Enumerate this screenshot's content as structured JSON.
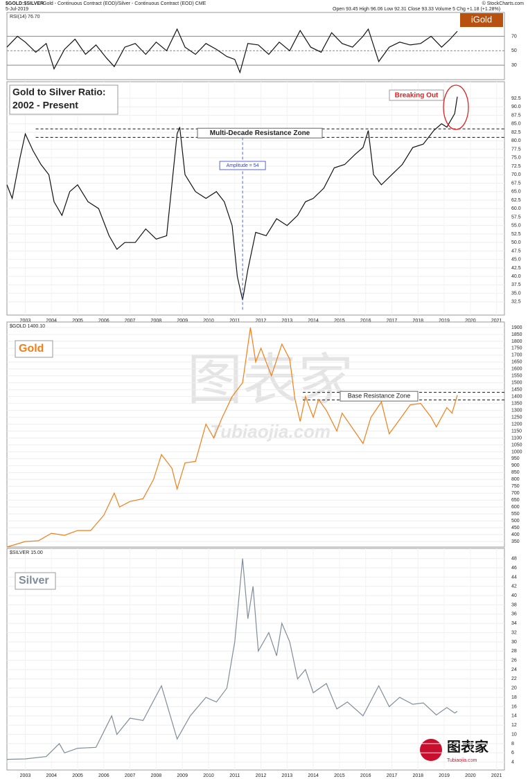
{
  "header": {
    "symbol": "$GOLD:$SILVER",
    "description": "Gold - Continuous Contract (EOD)/Silver - Continuous Contract (EOD) CME",
    "date": "5-Jul-2019",
    "quote": "Open 93.45 High 96.06 Low 92.31 Close 93.33 Volume 5 Chg +1.18 (+1.28%)",
    "credit": "© StockCharts.com",
    "logo": "iGold"
  },
  "watermark": {
    "big": "图表家",
    "site": "Tubiaojia.com",
    "logo": "图表家",
    "logo_site": "Tubiaojia.com"
  },
  "chart_data": [
    {
      "type": "line",
      "label": "RSI(14) 76.70",
      "color": "#111111",
      "xlim": [
        2002.3,
        2021.3
      ],
      "ylim": [
        10,
        103
      ],
      "yticks": [
        30,
        50,
        70
      ],
      "x": [
        2002.3,
        2002.7,
        2003.0,
        2003.4,
        2003.8,
        2004.1,
        2004.5,
        2004.9,
        2005.3,
        2005.7,
        2006.1,
        2006.4,
        2006.8,
        2007.2,
        2007.6,
        2008.0,
        2008.4,
        2008.8,
        2009.1,
        2009.5,
        2009.9,
        2010.3,
        2010.7,
        2011.0,
        2011.2,
        2011.5,
        2011.9,
        2012.3,
        2012.7,
        2013.1,
        2013.5,
        2013.9,
        2014.3,
        2014.7,
        2015.1,
        2015.5,
        2015.9,
        2016.1,
        2016.5,
        2016.9,
        2017.3,
        2017.7,
        2018.1,
        2018.5,
        2018.9,
        2019.2,
        2019.5
      ],
      "values": [
        55,
        70,
        62,
        48,
        60,
        25,
        52,
        66,
        45,
        58,
        40,
        28,
        55,
        60,
        45,
        62,
        50,
        80,
        55,
        45,
        60,
        52,
        42,
        38,
        20,
        60,
        58,
        45,
        62,
        50,
        78,
        55,
        48,
        75,
        60,
        55,
        70,
        80,
        35,
        55,
        62,
        58,
        60,
        70,
        55,
        65,
        77
      ]
    },
    {
      "type": "line",
      "title_lines": [
        "Gold to Silver Ratio:",
        "2002 - Present"
      ],
      "color": "#111111",
      "xlim": [
        2002.3,
        2021.3
      ],
      "ylim": [
        28.6,
        97.4
      ],
      "yticks": [
        32.5,
        {
          "value": 35,
          "label": "35.0"
        },
        37.5,
        {
          "value": 40,
          "label": "40.0"
        },
        42.5,
        {
          "value": 45,
          "label": "45.0"
        },
        47.5,
        {
          "value": 50,
          "label": "50.0"
        },
        52.5,
        {
          "value": 55,
          "label": "55.0"
        },
        57.5,
        {
          "value": 60,
          "label": "60.0"
        },
        62.5,
        {
          "value": 65,
          "label": "65.0"
        },
        67.5,
        {
          "value": 70,
          "label": "70.0"
        },
        72.5,
        {
          "value": 75,
          "label": "75.0"
        },
        77.5,
        {
          "value": 80,
          "label": "80.0"
        },
        82.5,
        {
          "value": 85,
          "label": "85.0"
        },
        87.5,
        {
          "value": 90,
          "label": "90.0"
        },
        92.5
      ],
      "xticks": [
        2003,
        2004,
        2005,
        2006,
        2007,
        2008,
        2009,
        2010,
        2011,
        2012,
        2013,
        2014,
        2015,
        2016,
        2017,
        2018,
        2019,
        2020,
        2021
      ],
      "levels": [
        83.5,
        81
      ],
      "resistance_label": "Multi-Decade Resistance Zone",
      "amplitude_label": "Amplitude = 54",
      "breakout_label": "Breaking Out",
      "x": [
        2002.3,
        2002.5,
        2002.8,
        2003.0,
        2003.3,
        2003.6,
        2003.9,
        2004.1,
        2004.4,
        2004.7,
        2005.0,
        2005.4,
        2005.8,
        2006.2,
        2006.5,
        2006.8,
        2007.2,
        2007.6,
        2008.0,
        2008.4,
        2008.8,
        2008.9,
        2009.1,
        2009.5,
        2009.9,
        2010.3,
        2010.6,
        2010.9,
        2011.1,
        2011.3,
        2011.5,
        2011.8,
        2012.2,
        2012.6,
        2013.0,
        2013.4,
        2013.7,
        2014.0,
        2014.4,
        2014.8,
        2015.2,
        2015.6,
        2015.9,
        2016.1,
        2016.3,
        2016.6,
        2017.0,
        2017.4,
        2017.8,
        2018.2,
        2018.6,
        2018.9,
        2019.1,
        2019.4,
        2019.5
      ],
      "values": [
        67,
        63,
        75,
        82,
        77,
        73,
        70,
        62,
        58,
        65,
        67,
        62,
        60,
        52,
        48,
        50,
        50,
        54,
        51,
        52,
        82,
        84,
        70,
        65,
        63,
        65,
        62,
        55,
        40,
        33,
        42,
        53,
        52,
        57,
        55,
        58,
        62,
        63,
        66,
        72,
        73,
        76,
        78,
        83,
        70,
        67,
        70,
        73,
        78,
        79,
        83,
        85,
        84,
        88,
        93
      ]
    },
    {
      "type": "line",
      "label": "$GOLD 1400.10",
      "title": "Gold",
      "color": "#f07f1a",
      "xlim": [
        2002.3,
        2021.3
      ],
      "ylim": [
        310,
        1940
      ],
      "yticks": [
        350,
        400,
        450,
        500,
        550,
        600,
        650,
        700,
        750,
        800,
        850,
        900,
        950,
        1000,
        1050,
        1100,
        1150,
        1200,
        1250,
        1300,
        1350,
        1400,
        1450,
        1500,
        1550,
        1600,
        1650,
        1700,
        1750,
        1800,
        1850,
        1900
      ],
      "levels": [
        1430,
        1375
      ],
      "resistance_label": "Base Resistance Zone",
      "x": [
        2002.3,
        2003.0,
        2003.5,
        2004.0,
        2004.5,
        2005.0,
        2005.5,
        2006.0,
        2006.4,
        2006.6,
        2007.0,
        2007.5,
        2007.9,
        2008.2,
        2008.6,
        2008.8,
        2009.1,
        2009.5,
        2009.9,
        2010.2,
        2010.5,
        2010.9,
        2011.3,
        2011.6,
        2011.8,
        2012.0,
        2012.4,
        2012.8,
        2013.1,
        2013.3,
        2013.5,
        2013.7,
        2014.0,
        2014.2,
        2014.5,
        2014.9,
        2015.1,
        2015.5,
        2015.9,
        2016.2,
        2016.6,
        2016.9,
        2017.4,
        2017.7,
        2018.1,
        2018.5,
        2018.7,
        2019.1,
        2019.3,
        2019.5
      ],
      "values": [
        310,
        350,
        355,
        410,
        395,
        430,
        430,
        540,
        700,
        600,
        640,
        660,
        800,
        980,
        880,
        730,
        920,
        930,
        1200,
        1100,
        1240,
        1400,
        1500,
        1900,
        1650,
        1750,
        1550,
        1780,
        1670,
        1380,
        1220,
        1400,
        1250,
        1380,
        1300,
        1150,
        1280,
        1170,
        1060,
        1250,
        1360,
        1130,
        1260,
        1340,
        1350,
        1250,
        1180,
        1320,
        1280,
        1410
      ]
    },
    {
      "type": "line",
      "label": "$SILVER 15.00",
      "title": "Silver",
      "color": "#7f8c99",
      "xlim": [
        2002.3,
        2021.3
      ],
      "ylim": [
        2.3,
        50.2
      ],
      "yticks": [
        4,
        6,
        8,
        10,
        12,
        14,
        16,
        18,
        20,
        22,
        24,
        26,
        28,
        30,
        32,
        34,
        36,
        38,
        40,
        42,
        44,
        46,
        48
      ],
      "xticks": [
        2003,
        2004,
        2005,
        2006,
        2007,
        2008,
        2009,
        2010,
        2011,
        2012,
        2013,
        2014,
        2015,
        2016,
        2017,
        2018,
        2019,
        2020,
        2021
      ],
      "x": [
        2002.3,
        2003.0,
        2003.8,
        2004.3,
        2004.5,
        2005.0,
        2005.7,
        2006.3,
        2006.5,
        2007.0,
        2007.5,
        2008.2,
        2008.8,
        2009.3,
        2009.9,
        2010.3,
        2010.7,
        2011.0,
        2011.3,
        2011.5,
        2011.7,
        2011.9,
        2012.3,
        2012.6,
        2012.8,
        2013.1,
        2013.4,
        2013.7,
        2014.0,
        2014.5,
        2014.9,
        2015.3,
        2015.9,
        2016.5,
        2016.9,
        2017.3,
        2017.8,
        2018.2,
        2018.7,
        2019.1,
        2019.4,
        2019.5
      ],
      "values": [
        4.6,
        4.7,
        5.2,
        8,
        6,
        7,
        7.2,
        14,
        10,
        13.5,
        13,
        20.5,
        9,
        14,
        18,
        17,
        20,
        30,
        48,
        35,
        42,
        28,
        32,
        27,
        34,
        30,
        22,
        24,
        19,
        21,
        15.5,
        17,
        14,
        20.5,
        16,
        18,
        16.5,
        16.8,
        14.2,
        15.8,
        14.6,
        15
      ]
    }
  ]
}
